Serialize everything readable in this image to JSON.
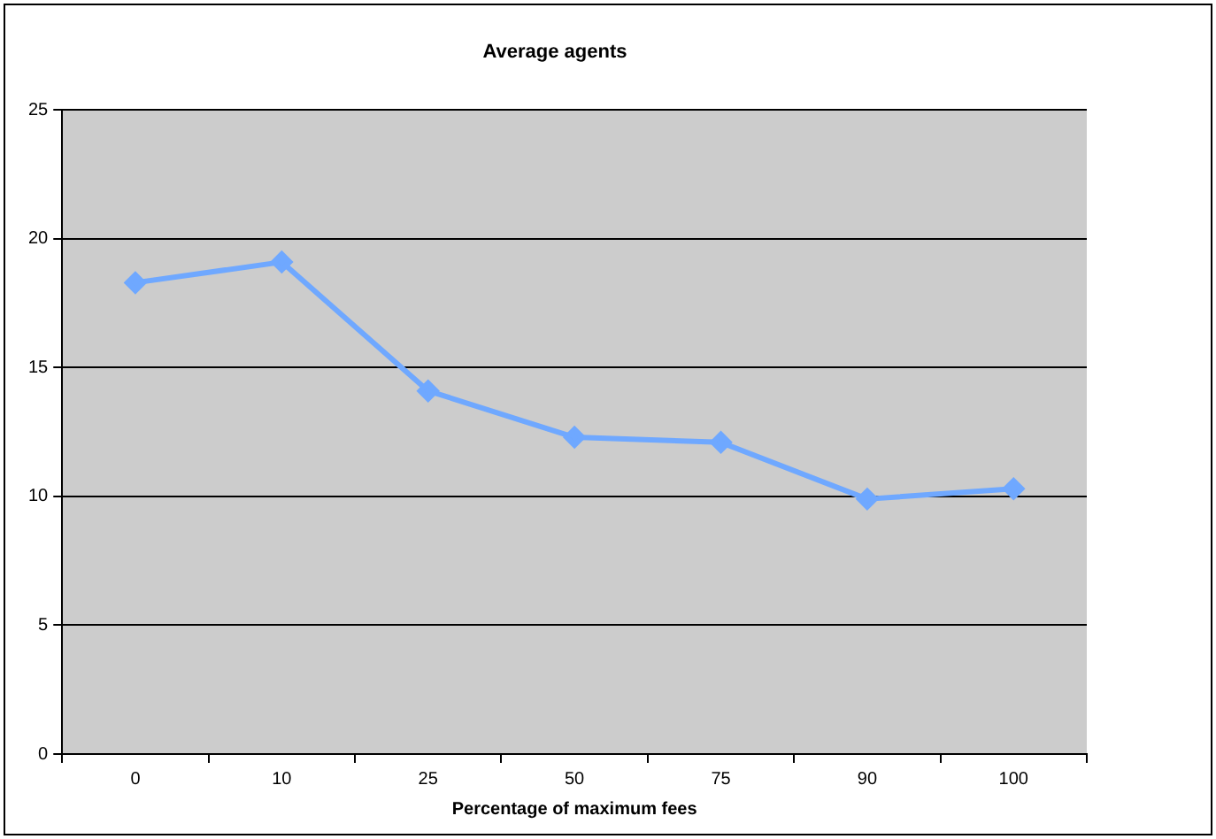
{
  "chart_data": {
    "type": "line",
    "title": "Average agents",
    "xlabel": "Percentage of maximum fees",
    "categories": [
      "0",
      "10",
      "25",
      "50",
      "75",
      "90",
      "100"
    ],
    "series": [
      {
        "color": "#6fa8ff",
        "values": [
          18.3,
          19.1,
          14.1,
          12.3,
          12.1,
          9.9,
          10.3
        ]
      }
    ],
    "ylim": [
      0,
      25
    ],
    "yticks": [
      0,
      5,
      10,
      15,
      20,
      25
    ],
    "grid": "y",
    "legend": false,
    "marker": "diamond",
    "line_style": "solid"
  }
}
